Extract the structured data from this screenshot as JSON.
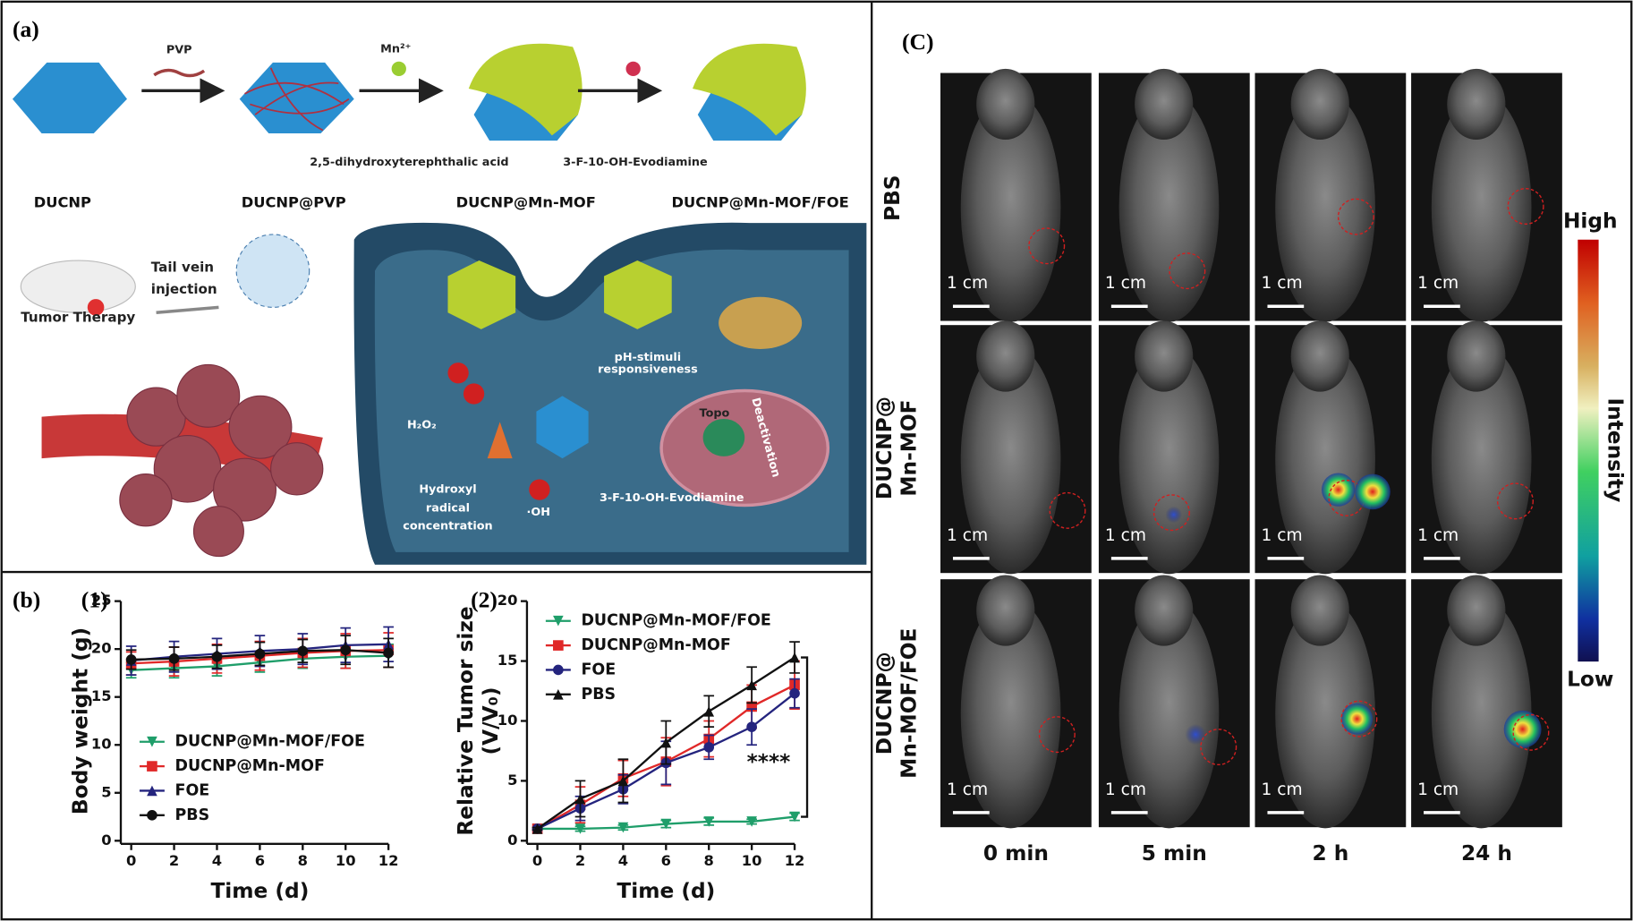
{
  "panel_a": {
    "label": "(a)",
    "reagent_pvp": "PVP",
    "reagent_mn": "Mn²⁺",
    "reagent_linker": "2,5-dihydroxyterephthalic acid",
    "reagent_drug": "3-F-10-OH-Evodiamine",
    "stages": [
      "DUCNP",
      "DUCNP@PVP",
      "DUCNP@Mn-MOF",
      "DUCNP@Mn-MOF/FOE"
    ],
    "tail_vein": [
      "Tail vein",
      "injection"
    ],
    "tumor_therapy": "Tumor Therapy",
    "ph_note": [
      "pH-stimuli",
      "responsiveness"
    ],
    "h2o2": "H₂O₂",
    "topo": "Topo",
    "deactivation": "Deactivation",
    "drug_note": "3-F-10-OH-Evodiamine",
    "hydroxyl": [
      "Hydroxyl",
      "radical",
      "concentration"
    ],
    "oh": "·OH"
  },
  "panel_b": {
    "label": "(b)",
    "sub": [
      "(1)",
      "(2)"
    ]
  },
  "panel_c": {
    "label": "(C)",
    "rows": [
      [
        "PBS"
      ],
      [
        "DUCNP@",
        "Mn-MOF"
      ],
      [
        "DUCNP@",
        "Mn-MOF/FOE"
      ]
    ],
    "columns": [
      "0 min",
      "5 min",
      "2 h",
      "24 h"
    ],
    "scale_bar": "1 cm",
    "colorbar": {
      "high": "High",
      "low": "Low",
      "title": "Intensity"
    }
  },
  "chart_data": [
    {
      "type": "line",
      "xlabel": "Time (d)",
      "ylabel": "Body weight (g)",
      "x": [
        0,
        2,
        4,
        6,
        8,
        10,
        12
      ],
      "xlim": [
        0,
        12
      ],
      "xticks": [
        0,
        2,
        4,
        6,
        8,
        10,
        12
      ],
      "ylim": [
        0,
        25
      ],
      "yticks": [
        0,
        5,
        10,
        15,
        20,
        25
      ],
      "legend": "lower left",
      "series": [
        {
          "name": "DUCNP@Mn-MOF/FOE",
          "color": "#1f9e6a",
          "marker": "triangle-down",
          "values": [
            17.8,
            18.0,
            18.2,
            18.6,
            19.0,
            19.2,
            19.3
          ],
          "errors": [
            0.8,
            1.0,
            1.0,
            1.0,
            1.0,
            1.2,
            1.2
          ]
        },
        {
          "name": "DUCNP@Mn-MOF",
          "color": "#e02828",
          "marker": "square",
          "values": [
            18.5,
            18.7,
            19.0,
            19.3,
            19.6,
            19.8,
            19.9
          ],
          "errors": [
            1.2,
            1.5,
            1.5,
            1.5,
            1.5,
            1.8,
            1.8
          ]
        },
        {
          "name": "FOE",
          "color": "#24247e",
          "marker": "triangle-up",
          "values": [
            18.8,
            19.2,
            19.5,
            19.8,
            20.0,
            20.4,
            20.5
          ],
          "errors": [
            1.5,
            1.6,
            1.6,
            1.6,
            1.6,
            1.8,
            1.8
          ]
        },
        {
          "name": "PBS",
          "color": "#111111",
          "marker": "circle",
          "values": [
            18.9,
            19.0,
            19.2,
            19.5,
            19.8,
            19.9,
            19.6
          ],
          "errors": [
            1.0,
            1.2,
            1.2,
            1.2,
            1.2,
            1.5,
            1.5
          ]
        }
      ]
    },
    {
      "type": "line",
      "xlabel": "Time (d)",
      "ylabel": [
        "Relative Tumor size",
        "(V/V₀)"
      ],
      "x": [
        0,
        2,
        4,
        6,
        8,
        10,
        12
      ],
      "xlim": [
        0,
        12
      ],
      "xticks": [
        0,
        2,
        4,
        6,
        8,
        10,
        12
      ],
      "ylim": [
        0,
        20
      ],
      "yticks": [
        0,
        5,
        10,
        15,
        20
      ],
      "legend": "upper left",
      "annotation": "****",
      "series": [
        {
          "name": "DUCNP@Mn-MOF/FOE",
          "color": "#1f9e6a",
          "marker": "triangle-down",
          "values": [
            1.0,
            1.0,
            1.1,
            1.4,
            1.6,
            1.6,
            2.0
          ],
          "errors": [
            0.1,
            0.2,
            0.2,
            0.3,
            0.3,
            0.2,
            0.3
          ]
        },
        {
          "name": "DUCNP@Mn-MOF",
          "color": "#e02828",
          "marker": "square",
          "values": [
            1.0,
            3.0,
            5.2,
            6.6,
            8.5,
            11.2,
            13.0
          ],
          "errors": [
            0.1,
            1.5,
            1.5,
            2.0,
            1.5,
            1.8,
            2.0
          ]
        },
        {
          "name": "FOE",
          "color": "#24247e",
          "marker": "circle",
          "values": [
            1.0,
            2.7,
            4.3,
            6.5,
            7.8,
            9.5,
            12.3
          ],
          "errors": [
            0.1,
            1.0,
            1.2,
            1.8,
            1.0,
            1.5,
            1.2
          ]
        },
        {
          "name": "PBS",
          "color": "#111111",
          "marker": "triangle-up",
          "values": [
            1.0,
            3.5,
            5.0,
            8.2,
            10.8,
            13.0,
            15.3
          ],
          "errors": [
            0.1,
            1.5,
            1.8,
            1.8,
            1.3,
            1.5,
            1.3
          ]
        }
      ]
    }
  ]
}
